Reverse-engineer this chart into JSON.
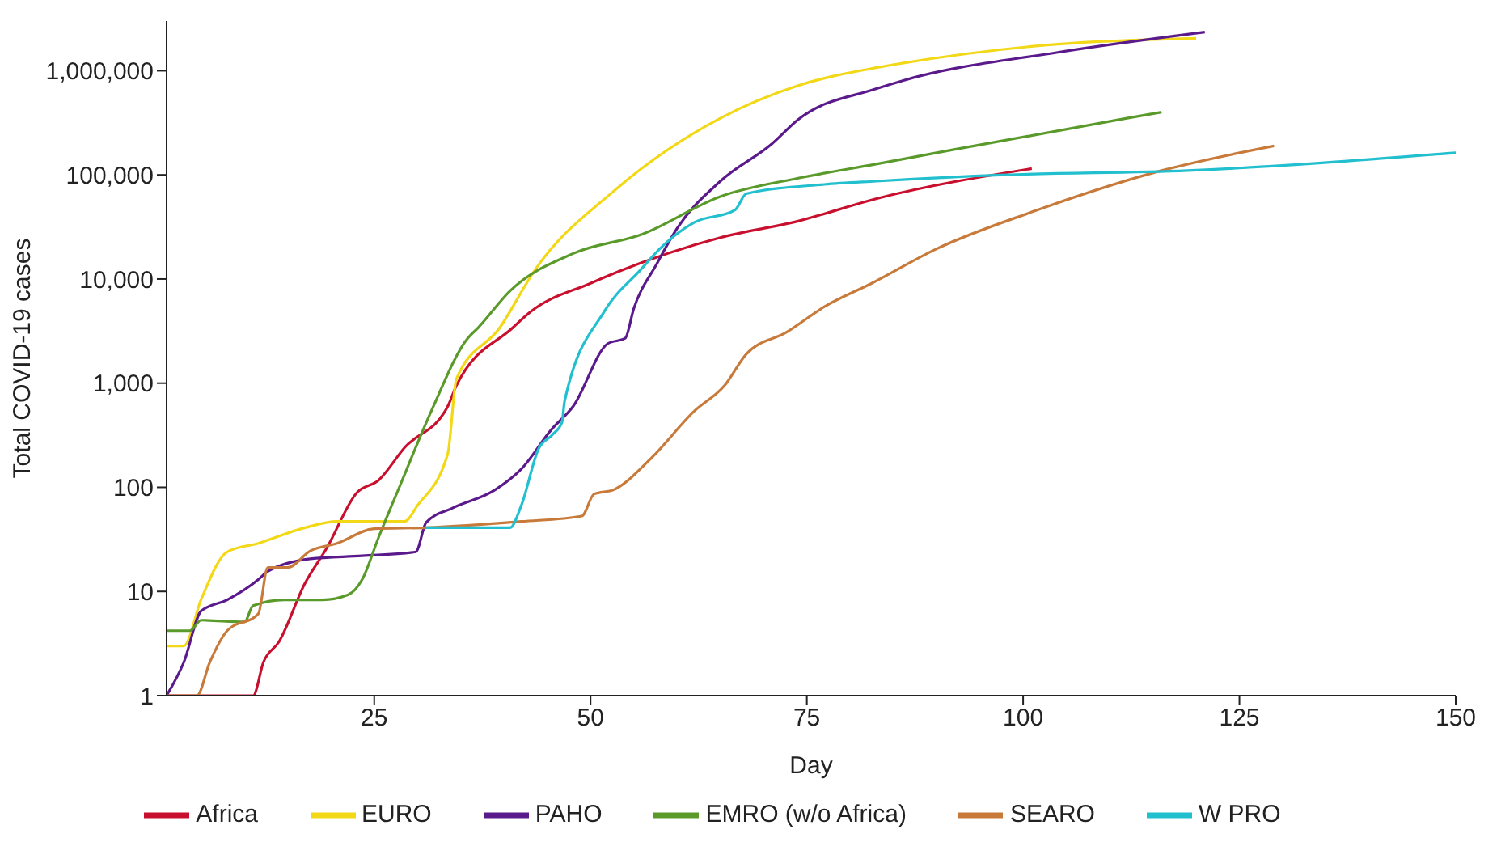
{
  "chart_data": {
    "type": "line",
    "xlabel": "Day",
    "ylabel": "Total COVID-19 cases",
    "log": "y",
    "grid": false,
    "legend": "bottom",
    "marker": "none",
    "line_style": "solid",
    "xlim": [
      1,
      150
    ],
    "xticks": [
      25,
      50,
      75,
      100,
      125,
      150
    ],
    "ylim": [
      1,
      3000000
    ],
    "yticks": [
      1,
      10,
      100,
      {
        "value": 1000,
        "label": "1,000"
      },
      {
        "value": 10000,
        "label": "10,000"
      },
      {
        "value": 100000,
        "label": "100,000"
      },
      {
        "value": 1000000,
        "label": "1,000,000"
      }
    ],
    "series": [
      {
        "name": "Africa",
        "color": "#c8102e",
        "x": [
          1,
          11,
          12.2,
          14,
          17,
          19.5,
          23,
          25.5,
          28.5,
          33.5,
          34.5,
          41,
          43,
          50,
          65,
          74,
          83,
          101
        ],
        "values": [
          1,
          1,
          2.1,
          3.3,
          12,
          26,
          89,
          117,
          240,
          600,
          950,
          3400,
          4800,
          9100,
          25000,
          36000,
          59000,
          115000
        ]
      },
      {
        "name": "EURO",
        "color": "#f2d816",
        "x": [
          1,
          3,
          5,
          8,
          11.6,
          17,
          20.7,
          28.5,
          30,
          33.5,
          34.5,
          39.5,
          43.6,
          52.7,
          65,
          74,
          83,
          86,
          104,
          120
        ],
        "values": [
          3,
          3,
          8.4,
          24,
          29,
          41,
          47,
          47,
          67,
          210,
          1100,
          3400,
          12300,
          70000,
          350000,
          720000,
          1070000,
          1180000,
          1800000,
          2050000
        ]
      },
      {
        "name": "PAHO",
        "color": "#5b1a8c",
        "x": [
          1,
          3,
          5,
          8,
          11.6,
          12.7,
          17.6,
          23.6,
          29.8,
          31,
          34,
          39,
          42,
          45.5,
          48,
          52,
          54,
          55,
          57.6,
          60,
          65,
          71,
          74,
          83,
          86,
          104,
          121
        ],
        "values": [
          1,
          2.1,
          6.5,
          8.3,
          13,
          15.6,
          20.6,
          22,
          24,
          46,
          63,
          95,
          150,
          360,
          600,
          2400,
          2700,
          5200,
          13700,
          30600,
          87000,
          200000,
          340000,
          670000,
          800000,
          1500000,
          2350000
        ]
      },
      {
        "name": "EMRO (w/o Africa)",
        "color": "#5a9a2a",
        "x": [
          1,
          3.7,
          5,
          10,
          11,
          14.6,
          19,
          22,
          23.6,
          25.5,
          28,
          31.6,
          35.8,
          37,
          40.7,
          48,
          56,
          65,
          74,
          83,
          92,
          112,
          116
        ],
        "values": [
          4.2,
          4.2,
          5.3,
          5.1,
          7.3,
          8.3,
          8.3,
          9.3,
          13,
          33,
          105,
          540,
          2700,
          3400,
          7700,
          17600,
          27000,
          62000,
          93000,
          127000,
          175000,
          350000,
          400000
        ]
      },
      {
        "name": "SEARO",
        "color": "#c87a3a",
        "x": [
          1,
          4.5,
          6,
          8,
          11.6,
          12.7,
          15,
          17.6,
          20.7,
          25,
          31,
          42,
          49,
          50.4,
          52.7,
          57,
          62,
          65.5,
          68,
          72.7,
          77,
          82.5,
          90,
          101,
          116,
          129
        ],
        "values": [
          1,
          1,
          2.1,
          4.2,
          6.1,
          17,
          17,
          24.5,
          29,
          40,
          41,
          47,
          53,
          86,
          95,
          190,
          540,
          950,
          1900,
          3100,
          5400,
          9100,
          19500,
          44000,
          110000,
          190000
        ]
      },
      {
        "name": "W PRO",
        "color": "#22bfcf",
        "x": [
          31,
          40.7,
          42,
          44,
          45.6,
          46.7,
          47,
          51.6,
          55.8,
          58,
          62,
          66.7,
          68,
          77,
          83,
          98,
          119,
          150
        ],
        "values": [
          41,
          41,
          67,
          235,
          320,
          420,
          670,
          4900,
          12300,
          19500,
          35000,
          46000,
          66000,
          81000,
          87000,
          100000,
          110000,
          163000
        ]
      }
    ]
  }
}
